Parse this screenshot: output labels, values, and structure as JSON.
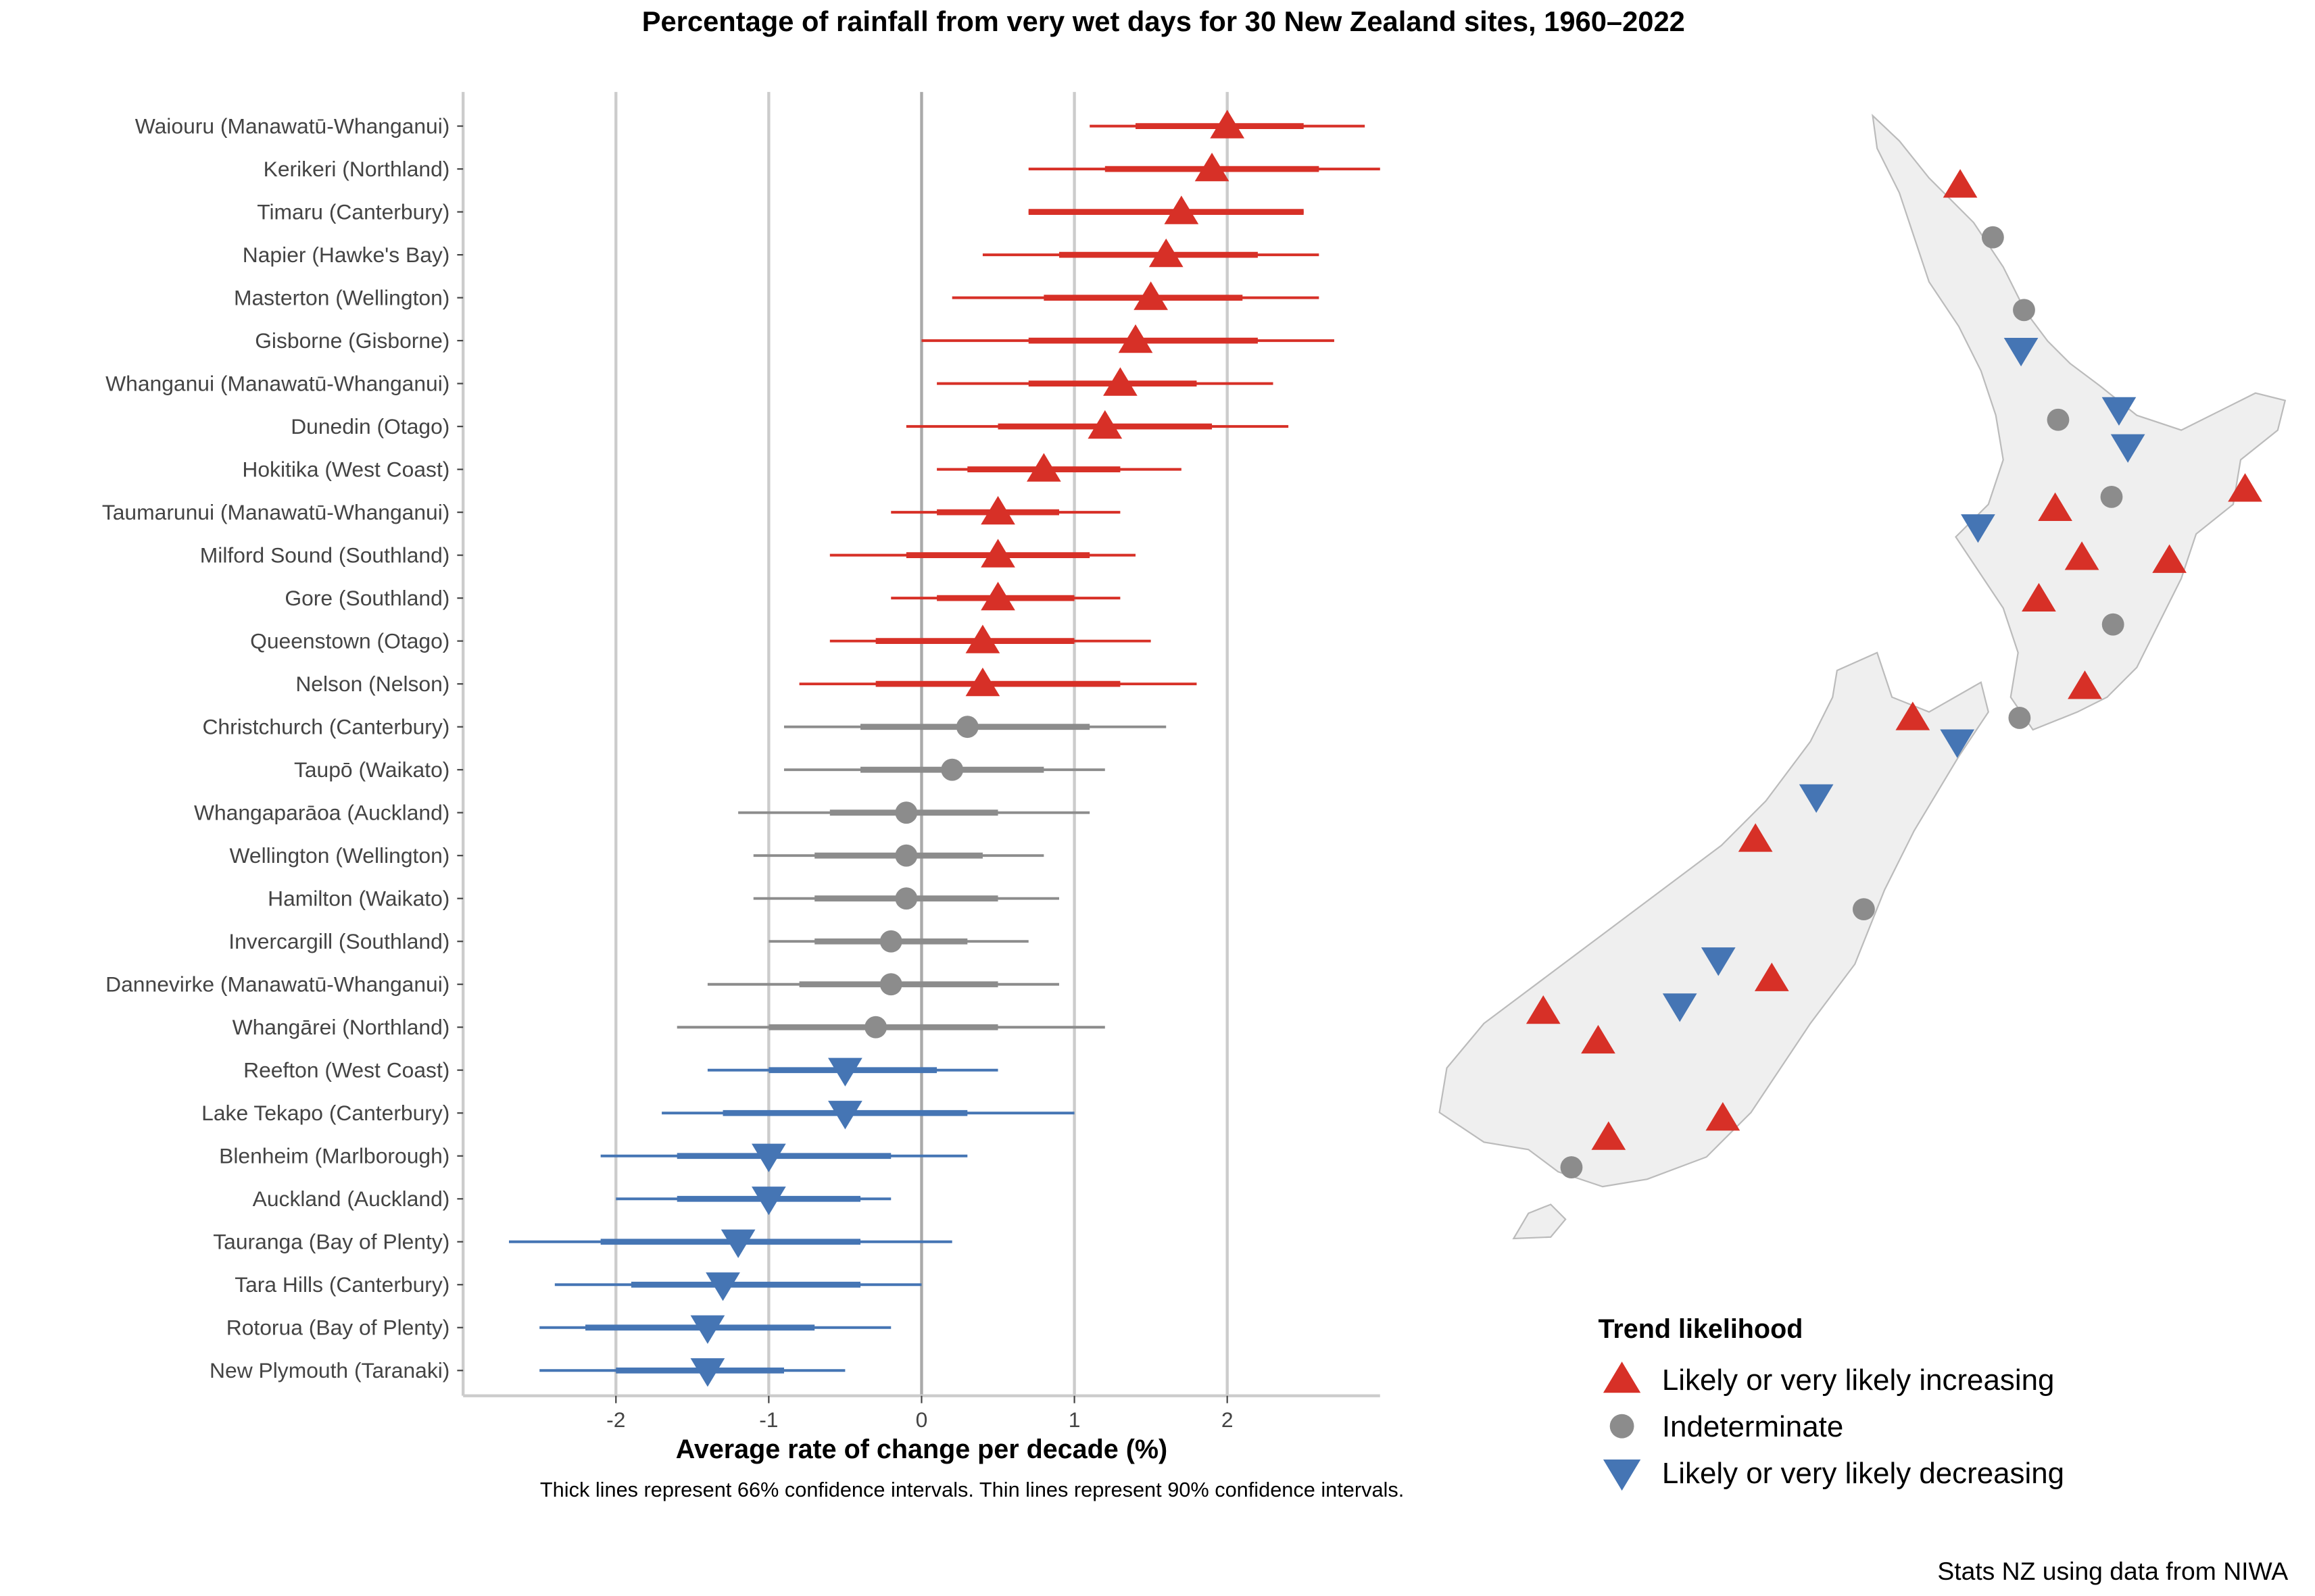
{
  "chart_data": {
    "type": "forest",
    "title": "Percentage of rainfall from very wet days for 30 New Zealand sites, 1960–2022",
    "xlabel": "Average rate of change per decade (%)",
    "note": "Thick lines represent 66% confidence intervals. Thin lines represent 90% confidence intervals.",
    "source": "Stats NZ using data from NIWA",
    "xlim": [
      -3,
      3
    ],
    "xticks": [
      "-2",
      "-1",
      "0",
      "1",
      "2"
    ],
    "xtick_values": [
      -2,
      -1,
      0,
      1,
      2
    ],
    "grid": true,
    "colors": {
      "increasing": "#d73027",
      "indeterminate": "#8c8c8c",
      "decreasing": "#4575b4"
    },
    "legend": {
      "title": "Trend likelihood",
      "position": "bottom-right",
      "items": [
        {
          "key": "increasing",
          "label": "Likely or very likely increasing",
          "marker": "triangle-up"
        },
        {
          "key": "indeterminate",
          "label": "Indeterminate",
          "marker": "circle"
        },
        {
          "key": "decreasing",
          "label": "Likely or very likely decreasing",
          "marker": "triangle-down"
        }
      ]
    },
    "sites": [
      {
        "name": "Waiouru (Manawatū-Whanganui)",
        "value": 2.0,
        "ci90": [
          1.1,
          2.9
        ],
        "ci66": [
          1.4,
          2.5
        ],
        "trend": "increasing"
      },
      {
        "name": "Kerikeri (Northland)",
        "value": 1.9,
        "ci90": [
          0.7,
          3.0
        ],
        "ci66": [
          1.2,
          2.6
        ],
        "trend": "increasing"
      },
      {
        "name": "Timaru (Canterbury)",
        "value": 1.7,
        "ci90": [
          0.7,
          2.5
        ],
        "ci66": [
          0.7,
          2.5
        ],
        "trend": "increasing"
      },
      {
        "name": "Napier (Hawke's Bay)",
        "value": 1.6,
        "ci90": [
          0.4,
          2.6
        ],
        "ci66": [
          0.9,
          2.2
        ],
        "trend": "increasing"
      },
      {
        "name": "Masterton (Wellington)",
        "value": 1.5,
        "ci90": [
          0.2,
          2.6
        ],
        "ci66": [
          0.8,
          2.1
        ],
        "trend": "increasing"
      },
      {
        "name": "Gisborne (Gisborne)",
        "value": 1.4,
        "ci90": [
          0.0,
          2.7
        ],
        "ci66": [
          0.7,
          2.2
        ],
        "trend": "increasing"
      },
      {
        "name": "Whanganui (Manawatū-Whanganui)",
        "value": 1.3,
        "ci90": [
          0.1,
          2.3
        ],
        "ci66": [
          0.7,
          1.8
        ],
        "trend": "increasing"
      },
      {
        "name": "Dunedin (Otago)",
        "value": 1.2,
        "ci90": [
          -0.1,
          2.4
        ],
        "ci66": [
          0.5,
          1.9
        ],
        "trend": "increasing"
      },
      {
        "name": "Hokitika (West Coast)",
        "value": 0.8,
        "ci90": [
          0.1,
          1.7
        ],
        "ci66": [
          0.3,
          1.3
        ],
        "trend": "increasing"
      },
      {
        "name": "Taumarunui (Manawatū-Whanganui)",
        "value": 0.5,
        "ci90": [
          -0.2,
          1.3
        ],
        "ci66": [
          0.1,
          0.9
        ],
        "trend": "increasing"
      },
      {
        "name": "Milford Sound (Southland)",
        "value": 0.5,
        "ci90": [
          -0.6,
          1.4
        ],
        "ci66": [
          -0.1,
          1.1
        ],
        "trend": "increasing"
      },
      {
        "name": "Gore (Southland)",
        "value": 0.5,
        "ci90": [
          -0.2,
          1.3
        ],
        "ci66": [
          0.1,
          1.0
        ],
        "trend": "increasing"
      },
      {
        "name": "Queenstown (Otago)",
        "value": 0.4,
        "ci90": [
          -0.6,
          1.5
        ],
        "ci66": [
          -0.3,
          1.0
        ],
        "trend": "increasing"
      },
      {
        "name": "Nelson (Nelson)",
        "value": 0.4,
        "ci90": [
          -0.8,
          1.8
        ],
        "ci66": [
          -0.3,
          1.3
        ],
        "trend": "increasing"
      },
      {
        "name": "Christchurch (Canterbury)",
        "value": 0.3,
        "ci90": [
          -0.9,
          1.6
        ],
        "ci66": [
          -0.4,
          1.1
        ],
        "trend": "indeterminate"
      },
      {
        "name": "Taupō (Waikato)",
        "value": 0.2,
        "ci90": [
          -0.9,
          1.2
        ],
        "ci66": [
          -0.4,
          0.8
        ],
        "trend": "indeterminate"
      },
      {
        "name": "Whangaparāoa (Auckland)",
        "value": -0.1,
        "ci90": [
          -1.2,
          1.1
        ],
        "ci66": [
          -0.6,
          0.5
        ],
        "trend": "indeterminate"
      },
      {
        "name": "Wellington (Wellington)",
        "value": -0.1,
        "ci90": [
          -1.1,
          0.8
        ],
        "ci66": [
          -0.7,
          0.4
        ],
        "trend": "indeterminate"
      },
      {
        "name": "Hamilton (Waikato)",
        "value": -0.1,
        "ci90": [
          -1.1,
          0.9
        ],
        "ci66": [
          -0.7,
          0.5
        ],
        "trend": "indeterminate"
      },
      {
        "name": "Invercargill (Southland)",
        "value": -0.2,
        "ci90": [
          -1.0,
          0.7
        ],
        "ci66": [
          -0.7,
          0.3
        ],
        "trend": "indeterminate"
      },
      {
        "name": "Dannevirke (Manawatū-Whanganui)",
        "value": -0.2,
        "ci90": [
          -1.4,
          0.9
        ],
        "ci66": [
          -0.8,
          0.5
        ],
        "trend": "indeterminate"
      },
      {
        "name": "Whangārei (Northland)",
        "value": -0.3,
        "ci90": [
          -1.6,
          1.2
        ],
        "ci66": [
          -1.0,
          0.5
        ],
        "trend": "indeterminate"
      },
      {
        "name": "Reefton (West Coast)",
        "value": -0.5,
        "ci90": [
          -1.4,
          0.5
        ],
        "ci66": [
          -1.0,
          0.1
        ],
        "trend": "decreasing"
      },
      {
        "name": "Lake Tekapo (Canterbury)",
        "value": -0.5,
        "ci90": [
          -1.7,
          1.0
        ],
        "ci66": [
          -1.3,
          0.3
        ],
        "trend": "decreasing"
      },
      {
        "name": "Blenheim (Marlborough)",
        "value": -1.0,
        "ci90": [
          -2.1,
          0.3
        ],
        "ci66": [
          -1.6,
          -0.2
        ],
        "trend": "decreasing"
      },
      {
        "name": "Auckland (Auckland)",
        "value": -1.0,
        "ci90": [
          -2.0,
          -0.2
        ],
        "ci66": [
          -1.6,
          -0.4
        ],
        "trend": "decreasing"
      },
      {
        "name": "Tauranga (Bay of Plenty)",
        "value": -1.2,
        "ci90": [
          -2.7,
          0.2
        ],
        "ci66": [
          -2.1,
          -0.4
        ],
        "trend": "decreasing"
      },
      {
        "name": "Tara Hills (Canterbury)",
        "value": -1.3,
        "ci90": [
          -2.4,
          0.0
        ],
        "ci66": [
          -1.9,
          -0.4
        ],
        "trend": "decreasing"
      },
      {
        "name": "Rotorua (Bay of Plenty)",
        "value": -1.4,
        "ci90": [
          -2.5,
          -0.2
        ],
        "ci66": [
          -2.2,
          -0.7
        ],
        "trend": "decreasing"
      },
      {
        "name": "New Plymouth (Taranaki)",
        "value": -1.4,
        "ci90": [
          -2.5,
          -0.5
        ],
        "ci66": [
          -2.0,
          -0.9
        ],
        "trend": "decreasing"
      }
    ]
  }
}
